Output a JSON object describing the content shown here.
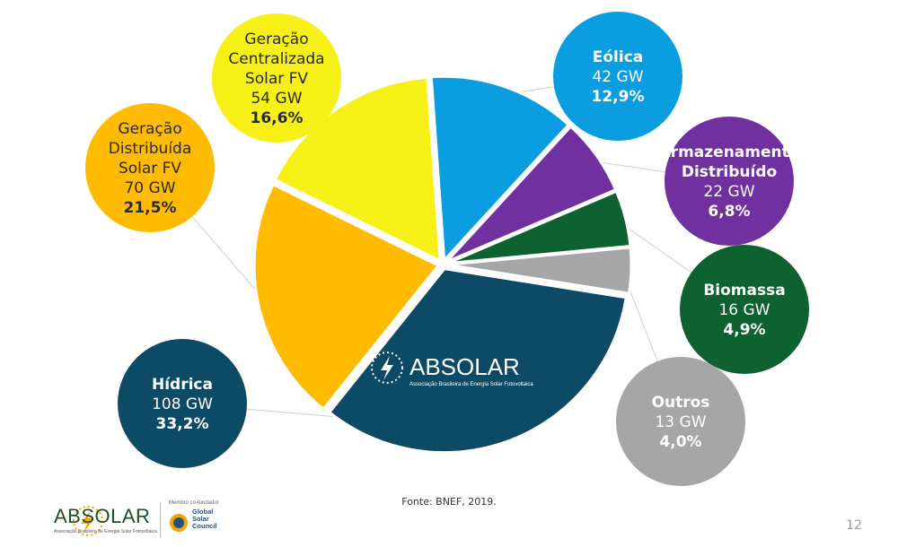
{
  "chart_data": {
    "type": "pie",
    "unit": "GW",
    "slices": [
      {
        "key": "hidrica",
        "name": "Hídrica",
        "value": 108,
        "value_label": "108 GW",
        "percent": 33.2,
        "percent_label": "33,2%",
        "color": "#0d4a66"
      },
      {
        "key": "gd",
        "name": "Geração Distribuída Solar FV",
        "value": 70,
        "value_label": "70 GW",
        "percent": 21.5,
        "percent_label": "21,5%",
        "color": "#ffbb00"
      },
      {
        "key": "gc",
        "name": "Geração Centralizada Solar FV",
        "value": 54,
        "value_label": "54 GW",
        "percent": 16.6,
        "percent_label": "16,6%",
        "color": "#f7f016"
      },
      {
        "key": "eolica",
        "name": "Eólica",
        "value": 42,
        "value_label": "42 GW",
        "percent": 12.9,
        "percent_label": "12,9%",
        "color": "#0a9ddf"
      },
      {
        "key": "arm",
        "name": "Armazenamento Distribuído",
        "value": 22,
        "value_label": "22 GW",
        "percent": 6.8,
        "percent_label": "6,8%",
        "color": "#7030a0"
      },
      {
        "key": "bio",
        "name": "Biomassa",
        "value": 16,
        "value_label": "16 GW",
        "percent": 4.9,
        "percent_label": "4,9%",
        "color": "#0e6130"
      },
      {
        "key": "outros",
        "name": "Outros",
        "value": 13,
        "value_label": "13 GW",
        "percent": 4.0,
        "percent_label": "4,0%",
        "color": "#a6a6a6"
      }
    ],
    "labels": {
      "hidrica": [
        "Hídrica"
      ],
      "gd": [
        "Geração",
        "Distribuída",
        "Solar FV"
      ],
      "gc": [
        "Geração",
        "Centralizada",
        "Solar FV"
      ],
      "eolica": [
        "Eólica"
      ],
      "arm": [
        "Armazenamento",
        "Distribuído"
      ],
      "bio": [
        "Biomassa"
      ],
      "outros": [
        "Outros"
      ]
    },
    "center_logo": {
      "name": "ABSOLAR",
      "tagline": "Associação Brasileira de Energia Solar Fotovoltaica"
    }
  },
  "source": "Fonte: BNEF, 2019.",
  "page_number": "12",
  "footer": {
    "brand": "ABSOLAR",
    "tagline": "Associação Brasileira de Energia Solar Fotovoltaica",
    "member_label": "Membro co-fundador",
    "partner": [
      "Global",
      "Solar",
      "Council"
    ]
  }
}
